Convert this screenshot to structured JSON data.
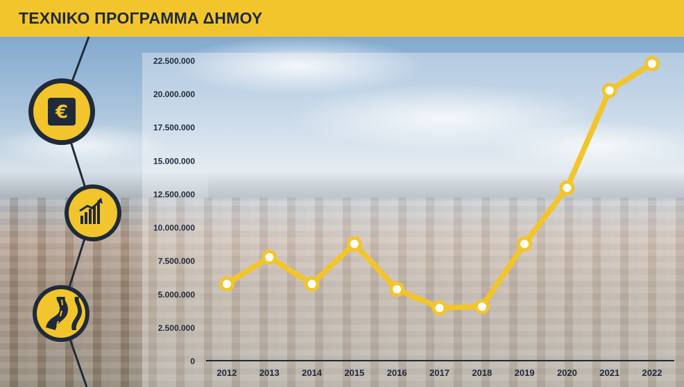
{
  "header": {
    "title": "ΤΕΧΝΙΚΟ ΠΡΟΓΡΑΜΜΑ ΔΗΜΟΥ"
  },
  "colors": {
    "accent": "#f2c52c",
    "dark": "#1f2a3a",
    "marker_fill": "#ffffff"
  },
  "icons": [
    "euro-icon",
    "growth-chart-icon",
    "road-icon"
  ],
  "chart_data": {
    "type": "line",
    "categories": [
      "2012",
      "2013",
      "2014",
      "2015",
      "2016",
      "2017",
      "2018",
      "2019",
      "2020",
      "2021",
      "2022"
    ],
    "values": [
      5800000,
      7800000,
      5800000,
      8800000,
      5400000,
      4000000,
      4100000,
      8800000,
      13000000,
      20300000,
      22300000
    ],
    "yticks": [
      "0",
      "2.500.000",
      "5.000.000",
      "7.500.000",
      "10.000.000",
      "12.500.000",
      "15.000.000",
      "17.500.000",
      "20.000.000",
      "22.500.000"
    ],
    "ytick_values": [
      0,
      2500000,
      5000000,
      7500000,
      10000000,
      12500000,
      15000000,
      17500000,
      20000000,
      22500000
    ],
    "ylim": [
      0,
      22500000
    ],
    "title": "",
    "xlabel": "",
    "ylabel": "",
    "grid": false,
    "legend": "none"
  }
}
